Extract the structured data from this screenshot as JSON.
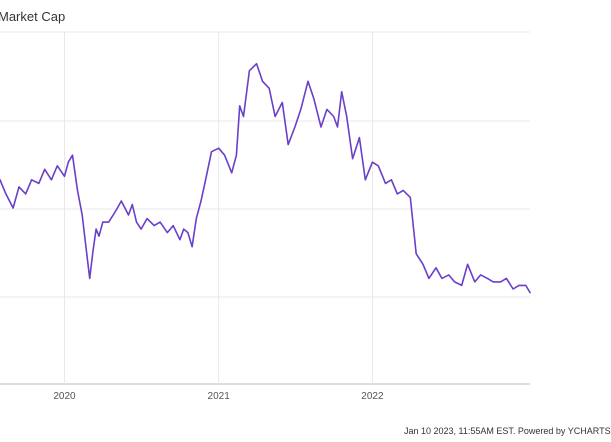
{
  "chart_data": {
    "type": "line",
    "title": "Market Cap",
    "xlabel": "",
    "ylabel": "",
    "x_ticks": [
      "2020",
      "2021",
      "2022"
    ],
    "grid": true,
    "color": "#6a3fc9",
    "series": [
      {
        "x": [
          "2019-08-01",
          "2019-08-15",
          "2019-09-01",
          "2019-09-15",
          "2019-10-01",
          "2019-10-15",
          "2019-11-01",
          "2019-11-15",
          "2019-12-01",
          "2019-12-15",
          "2020-01-01",
          "2020-01-10",
          "2020-01-20",
          "2020-02-01",
          "2020-02-12",
          "2020-02-20",
          "2020-03-01",
          "2020-03-09",
          "2020-03-16",
          "2020-03-23",
          "2020-04-01",
          "2020-04-15",
          "2020-05-01",
          "2020-05-15",
          "2020-06-01",
          "2020-06-10",
          "2020-06-20",
          "2020-07-01",
          "2020-07-15",
          "2020-08-01",
          "2020-08-15",
          "2020-09-01",
          "2020-09-15",
          "2020-10-01",
          "2020-10-10",
          "2020-10-20",
          "2020-10-30",
          "2020-11-09",
          "2020-11-20",
          "2020-12-01",
          "2020-12-15",
          "2021-01-01",
          "2021-01-15",
          "2021-02-01",
          "2021-02-12",
          "2021-02-20",
          "2021-03-01",
          "2021-03-15",
          "2021-04-01",
          "2021-04-15",
          "2021-05-01",
          "2021-05-15",
          "2021-06-01",
          "2021-06-15",
          "2021-07-01",
          "2021-07-15",
          "2021-08-01",
          "2021-08-15",
          "2021-09-01",
          "2021-09-15",
          "2021-10-01",
          "2021-10-10",
          "2021-10-20",
          "2021-11-01",
          "2021-11-15",
          "2021-12-01",
          "2021-12-15",
          "2022-01-01",
          "2022-01-15",
          "2022-02-01",
          "2022-02-15",
          "2022-03-01",
          "2022-03-15",
          "2022-04-01",
          "2022-04-15",
          "2022-05-01",
          "2022-05-15",
          "2022-06-01",
          "2022-06-15",
          "2022-07-01",
          "2022-07-15",
          "2022-08-01",
          "2022-08-15",
          "2022-09-01",
          "2022-09-15",
          "2022-10-01",
          "2022-10-15",
          "2022-11-01",
          "2022-11-15",
          "2022-12-01",
          "2022-12-15",
          "2022-12-31",
          "2023-01-10"
        ],
        "y": [
          58,
          54,
          50,
          56,
          54,
          58,
          57,
          61,
          58,
          62,
          59,
          63,
          65,
          55,
          48,
          40,
          30,
          38,
          44,
          42,
          46,
          46,
          49,
          52,
          48,
          51,
          46,
          44,
          47,
          45,
          46,
          43,
          45,
          41,
          44,
          43,
          39,
          47,
          52,
          58,
          66,
          67,
          65,
          60,
          65,
          79,
          76,
          89,
          91,
          86,
          84,
          76,
          80,
          68,
          73,
          78,
          86,
          81,
          73,
          78,
          76,
          73,
          83,
          76,
          64,
          70,
          58,
          63,
          62,
          57,
          58,
          54,
          55,
          53,
          37,
          34,
          30,
          33,
          30,
          31,
          29,
          28,
          34,
          29,
          31,
          30,
          29,
          29,
          30,
          27,
          28,
          28,
          26
        ]
      }
    ]
  },
  "footer": "Jan 10 2023, 11:55AM EST. Powered by YCHARTS"
}
